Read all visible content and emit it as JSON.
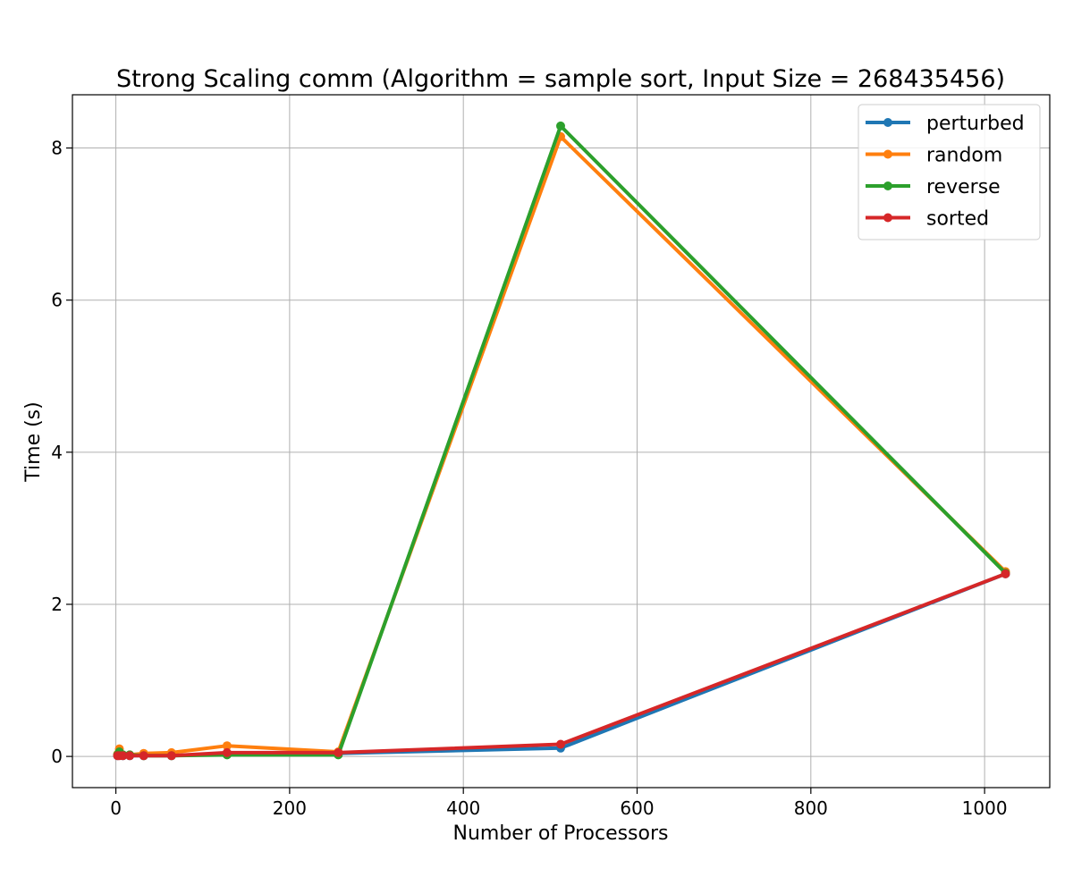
{
  "chart_data": {
    "type": "line",
    "title": "Strong Scaling comm (Algorithm = sample sort, Input Size = 268435456)",
    "xlabel": "Number of Processors",
    "ylabel": "Time (s)",
    "xlim": [
      -50,
      1075
    ],
    "ylim": [
      -0.41,
      8.7
    ],
    "xticks": [
      0,
      200,
      400,
      600,
      800,
      1000
    ],
    "yticks": [
      0,
      2,
      4,
      6,
      8
    ],
    "grid": true,
    "legend_position": "top-right",
    "x": [
      2,
      4,
      8,
      16,
      32,
      64,
      128,
      256,
      512,
      1024
    ],
    "series": [
      {
        "name": "perturbed",
        "color": "#1f77b4",
        "values": [
          0.01,
          0.02,
          0.01,
          0.01,
          0.01,
          0.01,
          0.03,
          0.04,
          0.11,
          2.4
        ]
      },
      {
        "name": "random",
        "color": "#ff7f0e",
        "values": [
          0.03,
          0.1,
          0.02,
          0.02,
          0.04,
          0.05,
          0.14,
          0.06,
          8.15,
          2.43
        ]
      },
      {
        "name": "reverse",
        "color": "#2ca02c",
        "values": [
          0.02,
          0.06,
          0.02,
          0.02,
          0.01,
          0.01,
          0.02,
          0.02,
          8.29,
          2.41
        ]
      },
      {
        "name": "sorted",
        "color": "#d62728",
        "values": [
          0.01,
          0.01,
          0.01,
          0.01,
          0.01,
          0.01,
          0.05,
          0.05,
          0.16,
          2.4
        ]
      }
    ]
  }
}
